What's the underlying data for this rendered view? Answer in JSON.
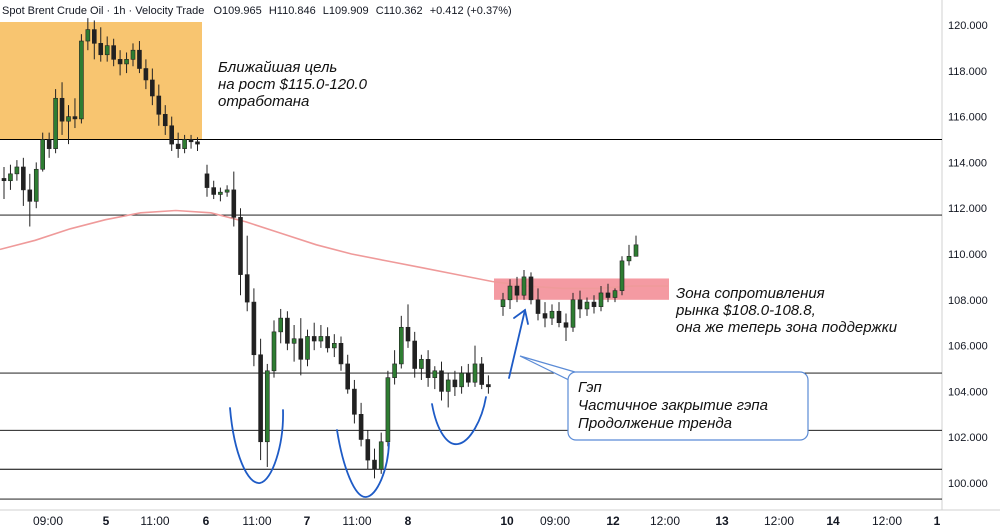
{
  "header": {
    "symbol": "Spot Brent Crude Oil · 1h · Velocity Trade",
    "ohlc_open": "O109.965",
    "ohlc_high": "H110.846",
    "ohlc_low": "L109.909",
    "ohlc_close": "C110.362",
    "change": "+0.412 (+0.37%)"
  },
  "colors": {
    "up": "#26a69a",
    "down": "#ef5350",
    "candle_body_up": "#2e7d32",
    "candle_body_down": "#212121",
    "ma": "#ef9a9a",
    "target_zone": "#f5a623",
    "resistance_zone": "#f06f7a",
    "annotation": "#1e5bc6",
    "level_line": "#000000"
  },
  "annotations": {
    "target": [
      "Ближайшая цель",
      "на рост $115.0-120.0",
      "отработана"
    ],
    "resistance": [
      "Зона сопротивления",
      "рынка $108.0-108.8,",
      "она же теперь зона поддержки"
    ],
    "gap": [
      "Гэп",
      "Частичное закрытие гэпа",
      "Продолжение тренда"
    ]
  },
  "chart_data": {
    "type": "candlestick",
    "title": "Spot Brent Crude Oil · 1h · Velocity Trade",
    "x_ticks": [
      "09:00",
      "5",
      "11:00",
      "6",
      "11:00",
      "7",
      "11:00",
      "8",
      "10",
      "09:00",
      "12",
      "12:00",
      "13",
      "12:00",
      "14",
      "12:00",
      "1"
    ],
    "y_ticks": [
      100.0,
      102.0,
      104.0,
      106.0,
      108.0,
      110.0,
      112.0,
      114.0,
      116.0,
      118.0,
      120.0
    ],
    "y_tick_labels": [
      "100.000",
      "102.000",
      "104.000",
      "106.000",
      "108.000",
      "110.000",
      "112.000",
      "114.000",
      "116.000",
      "118.000",
      "120.000"
    ],
    "ylim": [
      99.0,
      121.0
    ],
    "horizontal_levels": [
      115.0,
      111.7,
      104.8,
      102.3,
      100.6,
      99.3
    ],
    "zones": [
      {
        "name": "target",
        "from": 115.0,
        "to": 120.0
      },
      {
        "name": "resistance",
        "from": 108.0,
        "to": 108.8
      }
    ],
    "moving_average": [
      110.2,
      110.6,
      111.1,
      111.5,
      111.8,
      111.9,
      111.8,
      111.4,
      110.9,
      110.4,
      110.0,
      109.7,
      109.4,
      109.1,
      108.8,
      108.6,
      108.5,
      108.5,
      108.6,
      108.6
    ],
    "candles": [
      [
        113.3,
        113.8,
        112.4,
        113.2
      ],
      [
        113.2,
        113.9,
        112.8,
        113.5
      ],
      [
        113.5,
        114.1,
        113.2,
        113.8
      ],
      [
        113.8,
        114.2,
        112.1,
        112.8
      ],
      [
        112.8,
        113.5,
        111.2,
        112.3
      ],
      [
        112.3,
        114.0,
        112.0,
        113.7
      ],
      [
        113.7,
        115.3,
        113.6,
        115.0
      ],
      [
        115.0,
        115.3,
        114.2,
        114.6
      ],
      [
        114.6,
        117.2,
        114.4,
        116.8
      ],
      [
        116.8,
        117.5,
        115.2,
        115.8
      ],
      [
        115.8,
        116.5,
        114.8,
        116.0
      ],
      [
        116.0,
        116.8,
        115.5,
        115.9
      ],
      [
        115.9,
        119.6,
        115.7,
        119.3
      ],
      [
        119.3,
        120.3,
        118.9,
        119.8
      ],
      [
        119.8,
        120.2,
        118.5,
        119.2
      ],
      [
        119.2,
        119.9,
        118.4,
        118.7
      ],
      [
        118.7,
        119.5,
        118.4,
        119.1
      ],
      [
        119.1,
        119.4,
        118.2,
        118.5
      ],
      [
        118.5,
        118.9,
        117.8,
        118.3
      ],
      [
        118.3,
        118.8,
        117.9,
        118.5
      ],
      [
        118.5,
        119.2,
        118.2,
        118.9
      ],
      [
        118.9,
        119.3,
        117.9,
        118.1
      ],
      [
        118.1,
        118.5,
        117.2,
        117.6
      ],
      [
        117.6,
        118.1,
        116.5,
        116.9
      ],
      [
        116.9,
        117.4,
        115.6,
        116.1
      ],
      [
        116.1,
        116.5,
        115.2,
        115.6
      ],
      [
        115.6,
        116.0,
        114.5,
        114.8
      ],
      [
        114.8,
        115.3,
        114.2,
        114.6
      ],
      [
        114.6,
        115.2,
        114.4,
        115.0
      ],
      [
        115.0,
        115.2,
        114.6,
        114.9
      ],
      [
        114.9,
        115.1,
        114.5,
        114.8
      ],
      [
        113.5,
        113.9,
        112.5,
        112.9
      ],
      [
        112.9,
        113.2,
        112.4,
        112.6
      ],
      [
        112.6,
        112.9,
        112.3,
        112.7
      ],
      [
        112.7,
        113.0,
        112.5,
        112.8
      ],
      [
        112.8,
        113.6,
        111.2,
        111.6
      ],
      [
        111.6,
        112.0,
        108.2,
        109.1
      ],
      [
        109.1,
        110.8,
        107.5,
        107.9
      ],
      [
        107.9,
        108.5,
        105.1,
        105.6
      ],
      [
        105.6,
        106.3,
        101.0,
        101.8
      ],
      [
        101.8,
        105.2,
        100.7,
        104.9
      ],
      [
        104.9,
        107.1,
        104.6,
        106.6
      ],
      [
        106.6,
        107.6,
        106.1,
        107.2
      ],
      [
        107.2,
        107.5,
        105.8,
        106.1
      ],
      [
        106.1,
        106.9,
        105.3,
        106.3
      ],
      [
        106.3,
        107.2,
        104.7,
        105.4
      ],
      [
        105.4,
        106.7,
        105.1,
        106.4
      ],
      [
        106.4,
        107.0,
        105.8,
        106.2
      ],
      [
        106.2,
        106.9,
        105.9,
        106.4
      ],
      [
        106.4,
        106.8,
        105.7,
        105.9
      ],
      [
        105.9,
        106.5,
        105.5,
        106.1
      ],
      [
        106.1,
        106.4,
        104.9,
        105.2
      ],
      [
        105.2,
        105.6,
        103.9,
        104.1
      ],
      [
        104.1,
        104.5,
        102.6,
        103.0
      ],
      [
        103.0,
        103.5,
        101.6,
        101.9
      ],
      [
        101.9,
        102.3,
        100.6,
        101.0
      ],
      [
        101.0,
        101.5,
        100.2,
        100.6
      ],
      [
        100.6,
        102.2,
        100.4,
        101.8
      ],
      [
        101.8,
        104.9,
        101.6,
        104.6
      ],
      [
        104.6,
        105.8,
        104.3,
        105.2
      ],
      [
        105.2,
        107.3,
        105.0,
        106.8
      ],
      [
        106.8,
        107.8,
        105.9,
        106.2
      ],
      [
        106.2,
        106.6,
        104.6,
        105.0
      ],
      [
        105.0,
        105.6,
        104.5,
        105.4
      ],
      [
        105.4,
        105.8,
        104.2,
        104.6
      ],
      [
        104.6,
        105.1,
        104.1,
        104.9
      ],
      [
        104.9,
        105.3,
        103.6,
        104.0
      ],
      [
        104.0,
        104.8,
        103.3,
        104.5
      ],
      [
        104.5,
        104.9,
        103.8,
        104.2
      ],
      [
        104.2,
        105.1,
        103.9,
        104.8
      ],
      [
        104.8,
        105.2,
        104.2,
        104.4
      ],
      [
        104.4,
        106.0,
        104.2,
        105.2
      ],
      [
        105.2,
        105.5,
        104.1,
        104.3
      ],
      [
        104.3,
        104.7,
        103.9,
        104.2
      ],
      [
        107.7,
        108.3,
        107.3,
        108.0
      ],
      [
        108.0,
        108.9,
        107.6,
        108.6
      ],
      [
        108.6,
        109.0,
        107.9,
        108.2
      ],
      [
        108.2,
        109.3,
        108.0,
        109.0
      ],
      [
        109.0,
        109.2,
        107.8,
        108.0
      ],
      [
        108.0,
        108.5,
        107.1,
        107.4
      ],
      [
        107.4,
        107.9,
        106.8,
        107.2
      ],
      [
        107.2,
        107.8,
        106.9,
        107.5
      ],
      [
        107.5,
        107.9,
        106.8,
        107.0
      ],
      [
        107.0,
        107.4,
        106.2,
        106.8
      ],
      [
        106.8,
        108.3,
        106.6,
        108.0
      ],
      [
        108.0,
        108.4,
        107.2,
        107.6
      ],
      [
        107.6,
        108.1,
        107.3,
        107.9
      ],
      [
        107.9,
        108.2,
        107.4,
        107.7
      ],
      [
        107.7,
        108.6,
        107.5,
        108.3
      ],
      [
        108.3,
        108.7,
        107.9,
        108.1
      ],
      [
        108.1,
        108.5,
        107.9,
        108.4
      ],
      [
        108.4,
        109.9,
        108.2,
        109.7
      ],
      [
        109.7,
        110.4,
        109.5,
        109.9
      ],
      [
        109.9,
        110.8,
        109.9,
        110.4
      ]
    ]
  }
}
